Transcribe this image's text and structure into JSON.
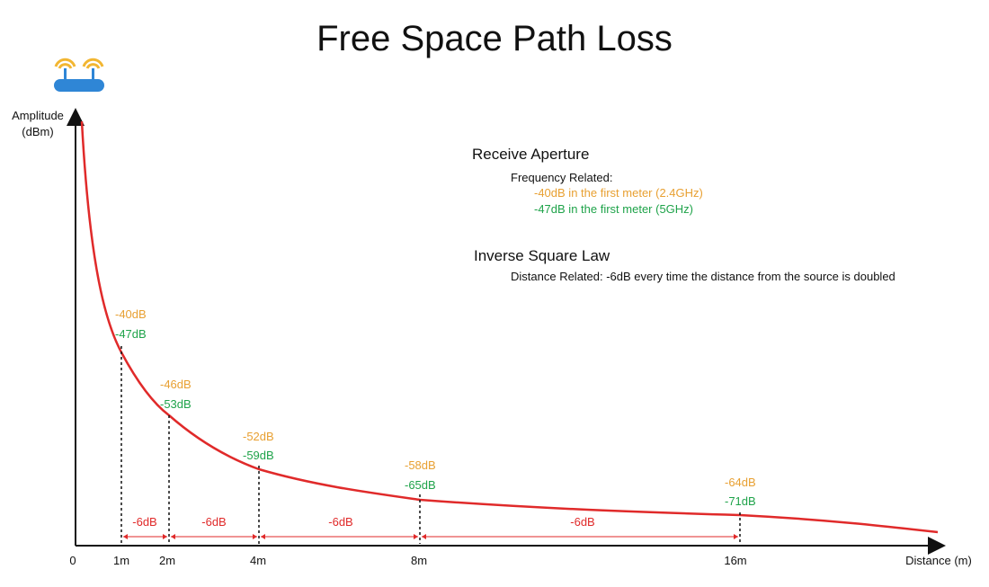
{
  "title": "Free Space Path Loss",
  "axes": {
    "y_label_line1": "Amplitude",
    "y_label_line2": "(dBm)",
    "x_label": "Distance (m)",
    "origin_label": "0"
  },
  "colors": {
    "curve": "#e02a2a",
    "orange": "#e8a032",
    "green": "#1fa34a",
    "router": "#2f86d6",
    "wifi": "#f2b632"
  },
  "icons": {
    "router": "router-icon"
  },
  "notes": {
    "receive_aperture": {
      "heading": "Receive Aperture",
      "sub": "Frequency Related:",
      "line_24": "-40dB in the first meter (2.4GHz)",
      "line_5": "-47dB in the first meter (5GHz)"
    },
    "inverse_square": {
      "heading": "Inverse Square Law",
      "sub": "Distance Related: -6dB every time the distance from the source is doubled"
    }
  },
  "markers": [
    {
      "distance": "1m",
      "db_24": "-40dB",
      "db_5": "-47dB"
    },
    {
      "distance": "2m",
      "db_24": "-46dB",
      "db_5": "-53dB"
    },
    {
      "distance": "4m",
      "db_24": "-52dB",
      "db_5": "-59dB"
    },
    {
      "distance": "8m",
      "db_24": "-58dB",
      "db_5": "-65dB"
    },
    {
      "distance": "16m",
      "db_24": "-64dB",
      "db_5": "-71dB"
    }
  ],
  "segments": [
    {
      "label": "-6dB"
    },
    {
      "label": "-6dB"
    },
    {
      "label": "-6dB"
    },
    {
      "label": "-6dB"
    }
  ]
}
